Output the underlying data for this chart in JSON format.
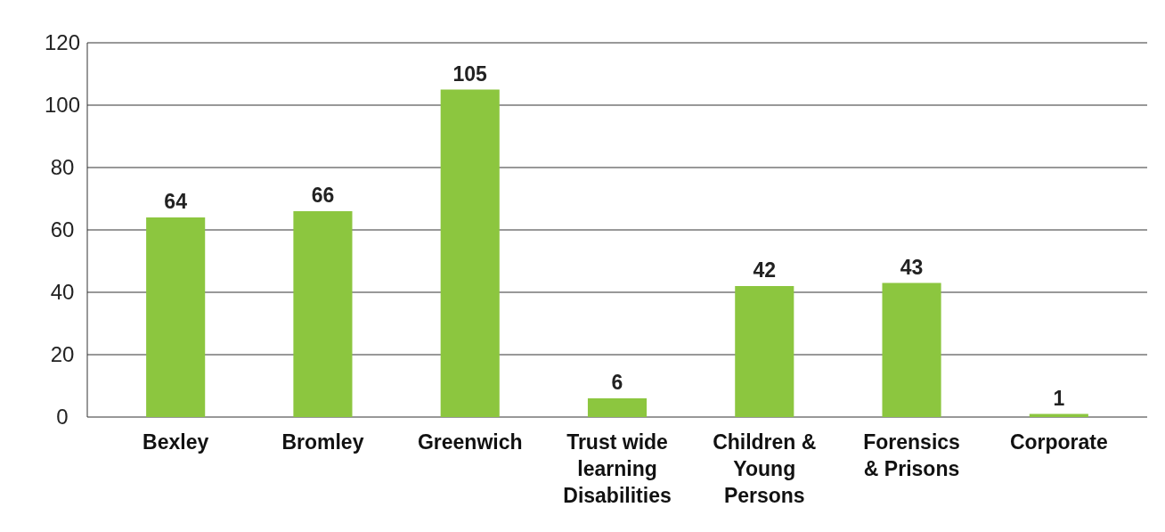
{
  "chart_data": {
    "type": "bar",
    "categories": [
      "Bexley",
      "Bromley",
      "Greenwich",
      "Trust wide learning Disabilities",
      "Children & Young Persons",
      "Forensics & Prisons",
      "Corporate"
    ],
    "values": [
      64,
      66,
      105,
      6,
      42,
      43,
      1
    ],
    "color": "#8cc63f",
    "ylim": [
      0,
      120
    ],
    "yticks": [
      0,
      20,
      40,
      60,
      80,
      100,
      120
    ],
    "grid": "y",
    "data_labels": true
  }
}
